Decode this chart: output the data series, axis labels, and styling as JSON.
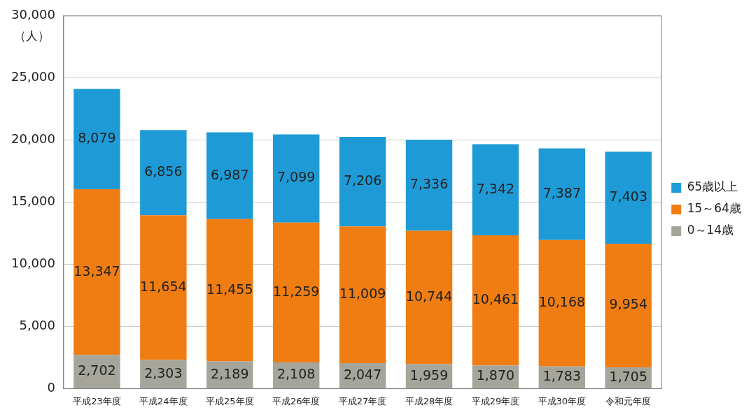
{
  "chart_data": {
    "type": "bar",
    "stacked": true,
    "ylabel": "（人）",
    "categories": [
      "平成23年度",
      "平成24年度",
      "平成25年度",
      "平成26年度",
      "平成27年度",
      "平成28年度",
      "平成29年度",
      "平成30年度",
      "令和元年度"
    ],
    "series": [
      {
        "name": "0～14歳",
        "color": "#a5a59b",
        "values": [
          2702,
          2303,
          2189,
          2108,
          2047,
          1959,
          1870,
          1783,
          1705
        ],
        "value_labels": [
          "2,702",
          "2,303",
          "2,189",
          "2,108",
          "2,047",
          "1,959",
          "1,870",
          "1,783",
          "1,705"
        ]
      },
      {
        "name": "15～64歳",
        "color": "#f07d12",
        "values": [
          13347,
          11654,
          11455,
          11259,
          11009,
          10744,
          10461,
          10168,
          9954
        ],
        "value_labels": [
          "13,347",
          "11,654",
          "11,455",
          "11,259",
          "11,009",
          "10,744",
          "10,461",
          "10,168",
          "9,954"
        ]
      },
      {
        "name": "65歳以上",
        "color": "#1e9bd7",
        "values": [
          8079,
          6856,
          6987,
          7099,
          7206,
          7336,
          7342,
          7387,
          7403
        ],
        "value_labels": [
          "8,079",
          "6,856",
          "6,987",
          "7,099",
          "7,206",
          "7,336",
          "7,342",
          "7,387",
          "7,403"
        ]
      }
    ],
    "ylim": [
      0,
      30000
    ],
    "yticks": [
      {
        "value": 0,
        "label": "0"
      },
      {
        "value": 5000,
        "label": "5,000"
      },
      {
        "value": 10000,
        "label": "10,000"
      },
      {
        "value": 15000,
        "label": "15,000"
      },
      {
        "value": 20000,
        "label": "20,000"
      },
      {
        "value": 25000,
        "label": "25,000"
      },
      {
        "value": 30000,
        "label": "30,000"
      }
    ],
    "grid": "y",
    "legend": "right"
  }
}
